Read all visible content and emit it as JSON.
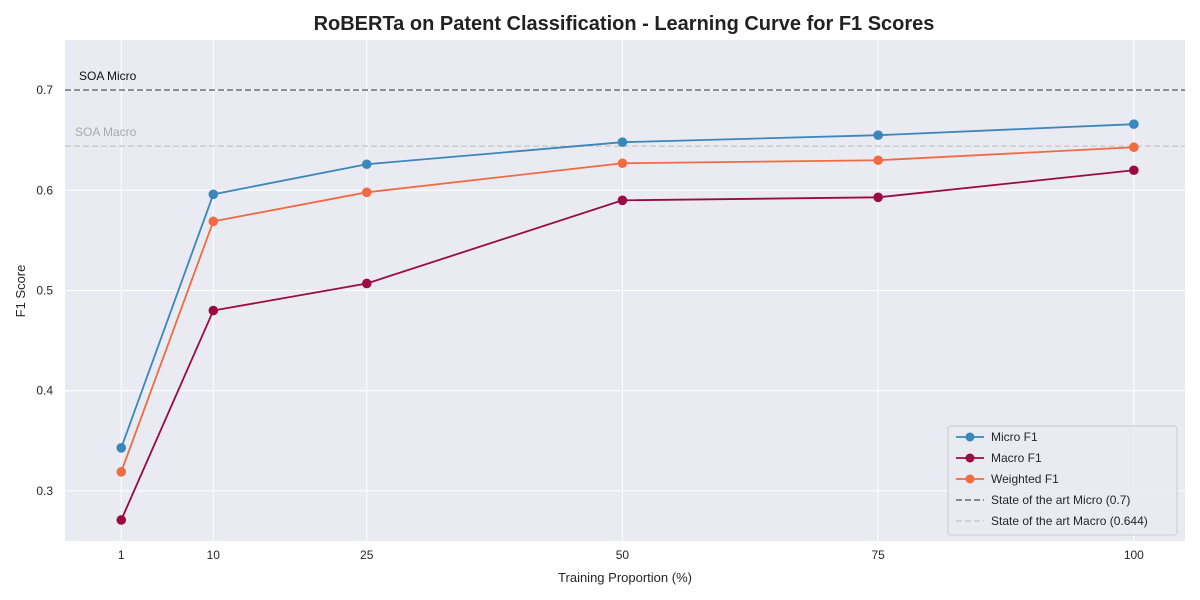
{
  "chart_data": {
    "type": "line",
    "title": "RoBERTa on Patent Classification - Learning Curve for F1 Scores",
    "xlabel": "Training Proportion (%)",
    "ylabel": "F1 Score",
    "x": [
      1,
      10,
      25,
      50,
      75,
      100
    ],
    "xlim": [
      -4.5,
      105
    ],
    "ylim": [
      0.25,
      0.75
    ],
    "xticks": [
      1,
      10,
      25,
      50,
      75,
      100
    ],
    "yticks": [
      0.3,
      0.4,
      0.5,
      0.6,
      0.7
    ],
    "grid": true,
    "legend_position": "lower-right",
    "series": [
      {
        "name": "Micro F1",
        "color": "#3a87bb",
        "marker": "circle",
        "values": [
          0.343,
          0.596,
          0.626,
          0.648,
          0.655,
          0.666
        ]
      },
      {
        "name": "Macro F1",
        "color": "#9a0a44",
        "marker": "circle",
        "values": [
          0.271,
          0.48,
          0.507,
          0.59,
          0.593,
          0.62
        ]
      },
      {
        "name": "Weighted F1",
        "color": "#f06b42",
        "marker": "circle",
        "values": [
          0.319,
          0.569,
          0.598,
          0.627,
          0.63,
          0.643
        ]
      }
    ],
    "reference_lines": [
      {
        "name": "State of the art Micro (0.7)",
        "label": "SOA Micro",
        "value": 0.7,
        "color": "#7a7a7a",
        "label_color": "#111111",
        "style": "dashed"
      },
      {
        "name": "State of the art Macro (0.644)",
        "label": "SOA Macro",
        "value": 0.644,
        "color": "#cfcfcf",
        "label_color": "#aaaaaa",
        "style": "dashed"
      }
    ]
  }
}
